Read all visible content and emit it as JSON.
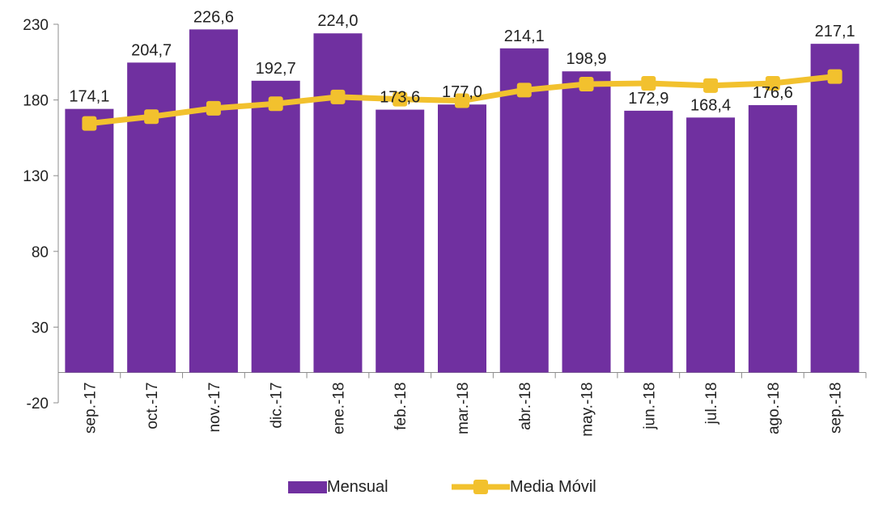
{
  "chart_data": {
    "type": "bar",
    "title": "",
    "xlabel": "",
    "ylabel": "",
    "ylim": [
      -20,
      230
    ],
    "yticks": [
      -20,
      30,
      80,
      130,
      180,
      230
    ],
    "grid": false,
    "legend_position": "bottom",
    "categories": [
      "sep.-17",
      "oct.-17",
      "nov.-17",
      "dic.-17",
      "ene.-18",
      "feb.-18",
      "mar.-18",
      "abr.-18",
      "may.-18",
      "jun.-18",
      "jul.-18",
      "ago.-18",
      "sep.-18"
    ],
    "series": [
      {
        "name": "Mensual",
        "type": "bar",
        "color": "#7030a0",
        "values": [
          174.1,
          204.7,
          226.6,
          192.7,
          224.0,
          173.6,
          177.0,
          214.1,
          198.9,
          172.9,
          168.4,
          176.6,
          217.1
        ],
        "labels": [
          "174,1",
          "204,7",
          "226,6",
          "192,7",
          "224,0",
          "173,6",
          "177,0",
          "214,1",
          "198,9",
          "172,9",
          "168,4",
          "176,6",
          "217,1"
        ]
      },
      {
        "name": "Media Móvil",
        "type": "line",
        "color": "#f2c12e",
        "marker": "square",
        "values": [
          164.5,
          169.0,
          174.5,
          177.5,
          182.0,
          180.5,
          179.5,
          186.5,
          190.5,
          191.0,
          189.5,
          191.0,
          195.5
        ]
      }
    ]
  }
}
